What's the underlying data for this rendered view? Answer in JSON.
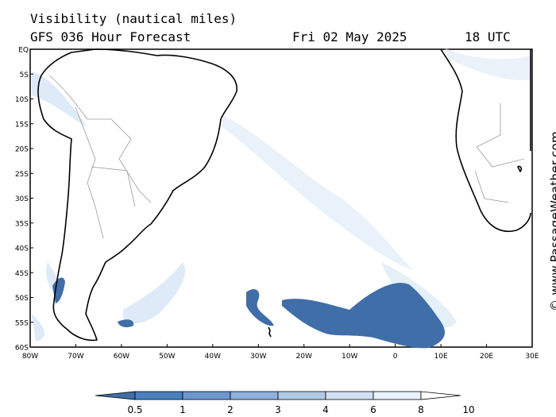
{
  "header": {
    "title": "Visibility (nautical miles)",
    "model_run": "GFS 036 Hour Forecast",
    "date": "Fri 02 May 2025",
    "time": "18 UTC"
  },
  "credit": "© www.PassageWeather.com",
  "map": {
    "lat_labels": [
      "EQ",
      "5S",
      "10S",
      "15S",
      "20S",
      "25S",
      "30S",
      "35S",
      "40S",
      "45S",
      "50S",
      "55S",
      "60S"
    ],
    "lon_labels": [
      "80W",
      "70W",
      "60W",
      "50W",
      "40W",
      "30W",
      "20W",
      "10W",
      "0",
      "10E",
      "20E",
      "30E"
    ],
    "extent": {
      "lon_min": -80,
      "lon_max": 30,
      "lat_min": -60,
      "lat_max": 0
    },
    "fog_color": "#3f6ea8",
    "haze_color": "#d3e2f3",
    "coast_color": "#000000",
    "border_color": "#9a9a9a"
  },
  "legend": {
    "ticks": [
      "0.5",
      "1",
      "2",
      "3",
      "4",
      "6",
      "8",
      "10"
    ],
    "colors": [
      "#3f6ea8",
      "#4a7fbf",
      "#6d98ce",
      "#8fb1da",
      "#b2cae6",
      "#d1e0f2",
      "#e9f1fa",
      "#ffffff"
    ]
  }
}
